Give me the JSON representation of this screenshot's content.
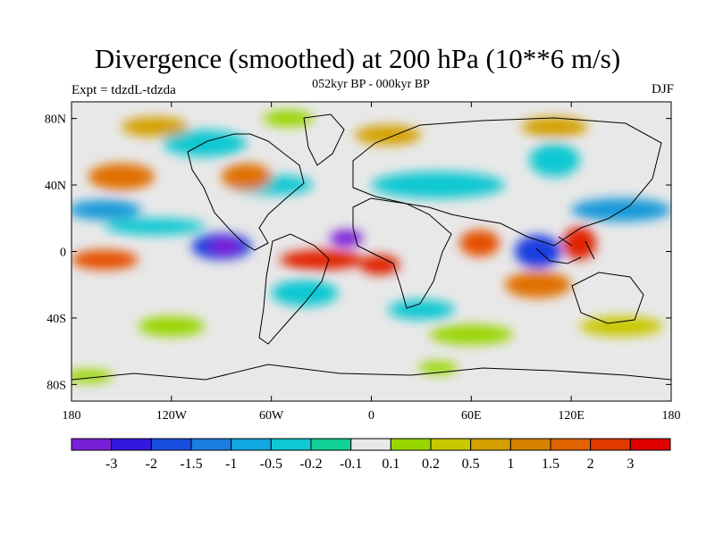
{
  "title": "Divergence (smoothed) at 200 hPa (10**6 m/s)",
  "subtitle": "052kyr BP - 000kyr BP",
  "experiment": "Expt = tdzdL-tdzda",
  "season": "DJF",
  "map": {
    "lon_range": [
      -180,
      180
    ],
    "lat_range": [
      -90,
      90
    ],
    "lat_ticks": [
      {
        "value": 80,
        "label": "80N"
      },
      {
        "value": 40,
        "label": "40N"
      },
      {
        "value": 0,
        "label": "0"
      },
      {
        "value": -40,
        "label": "40S"
      },
      {
        "value": -80,
        "label": "80S"
      }
    ],
    "lon_ticks": [
      {
        "value": -180,
        "label": "180"
      },
      {
        "value": -120,
        "label": "120W"
      },
      {
        "value": -60,
        "label": "60W"
      },
      {
        "value": 0,
        "label": "0"
      },
      {
        "value": 60,
        "label": "60E"
      },
      {
        "value": 120,
        "label": "120E"
      },
      {
        "value": 180,
        "label": "180"
      }
    ],
    "background_color": "#e8e8e8",
    "features": [
      {
        "lon": -90,
        "lat": 3,
        "rx": 18,
        "ry": 8,
        "color": "#1a3ee0"
      },
      {
        "lon": -88,
        "lat": 3,
        "rx": 9,
        "ry": 5,
        "color": "#7a1fd8"
      },
      {
        "lon": -15,
        "lat": 8,
        "rx": 10,
        "ry": 5,
        "color": "#7a1fd8"
      },
      {
        "lon": 100,
        "lat": 0,
        "rx": 14,
        "ry": 10,
        "color": "#1a3ee0"
      },
      {
        "lon": -160,
        "lat": 25,
        "rx": 22,
        "ry": 6,
        "color": "#1599d8"
      },
      {
        "lon": 150,
        "lat": 25,
        "rx": 30,
        "ry": 7,
        "color": "#1599d8"
      },
      {
        "lon": 40,
        "lat": 40,
        "rx": 40,
        "ry": 8,
        "color": "#10c8d2"
      },
      {
        "lon": -130,
        "lat": 15,
        "rx": 30,
        "ry": 5,
        "color": "#10c8d2"
      },
      {
        "lon": -60,
        "lat": 40,
        "rx": 25,
        "ry": 6,
        "color": "#10c8d2"
      },
      {
        "lon": -100,
        "lat": 65,
        "rx": 25,
        "ry": 8,
        "color": "#10c8d2"
      },
      {
        "lon": 110,
        "lat": 55,
        "rx": 15,
        "ry": 10,
        "color": "#10c8d2"
      },
      {
        "lon": -40,
        "lat": -25,
        "rx": 20,
        "ry": 8,
        "color": "#10c8d2"
      },
      {
        "lon": 30,
        "lat": -35,
        "rx": 20,
        "ry": 6,
        "color": "#10c8d2"
      },
      {
        "lon": -150,
        "lat": 45,
        "rx": 20,
        "ry": 8,
        "color": "#e07000"
      },
      {
        "lon": -160,
        "lat": -5,
        "rx": 20,
        "ry": 6,
        "color": "#e55000"
      },
      {
        "lon": -30,
        "lat": -5,
        "rx": 25,
        "ry": 6,
        "color": "#e02000"
      },
      {
        "lon": 5,
        "lat": -8,
        "rx": 12,
        "ry": 6,
        "color": "#e02000"
      },
      {
        "lon": 65,
        "lat": 5,
        "rx": 12,
        "ry": 8,
        "color": "#e55000"
      },
      {
        "lon": 125,
        "lat": 5,
        "rx": 10,
        "ry": 10,
        "color": "#e02000"
      },
      {
        "lon": -75,
        "lat": 45,
        "rx": 15,
        "ry": 8,
        "color": "#e07000"
      },
      {
        "lon": 100,
        "lat": -20,
        "rx": 20,
        "ry": 8,
        "color": "#e07000"
      },
      {
        "lon": -130,
        "lat": 75,
        "rx": 20,
        "ry": 6,
        "color": "#d4a000"
      },
      {
        "lon": 10,
        "lat": 70,
        "rx": 20,
        "ry": 6,
        "color": "#d4a000"
      },
      {
        "lon": 110,
        "lat": 75,
        "rx": 20,
        "ry": 6,
        "color": "#d4a000"
      },
      {
        "lon": -50,
        "lat": 80,
        "rx": 15,
        "ry": 5,
        "color": "#99d600"
      },
      {
        "lon": -120,
        "lat": -45,
        "rx": 20,
        "ry": 6,
        "color": "#99d600"
      },
      {
        "lon": 60,
        "lat": -50,
        "rx": 25,
        "ry": 6,
        "color": "#99d600"
      },
      {
        "lon": 150,
        "lat": -45,
        "rx": 25,
        "ry": 6,
        "color": "#c8c800"
      },
      {
        "lon": -170,
        "lat": -75,
        "rx": 15,
        "ry": 4,
        "color": "#99d600"
      },
      {
        "lon": 40,
        "lat": -70,
        "rx": 12,
        "ry": 4,
        "color": "#99d600"
      }
    ]
  },
  "colorbar": {
    "colors": [
      "#7a1fd8",
      "#3418e0",
      "#1a4ee0",
      "#1a7ee0",
      "#10a8e0",
      "#10c8d2",
      "#10d296",
      "#e8e8e8",
      "#99d600",
      "#c8c800",
      "#d4a000",
      "#d58200",
      "#e06200",
      "#e03a00",
      "#e00000"
    ],
    "labels": [
      "-3",
      "-2",
      "-1.5",
      "-1",
      "-0.5",
      "-0.2",
      "-0.1",
      "0.1",
      "0.2",
      "0.5",
      "1",
      "1.5",
      "2",
      "3"
    ]
  }
}
